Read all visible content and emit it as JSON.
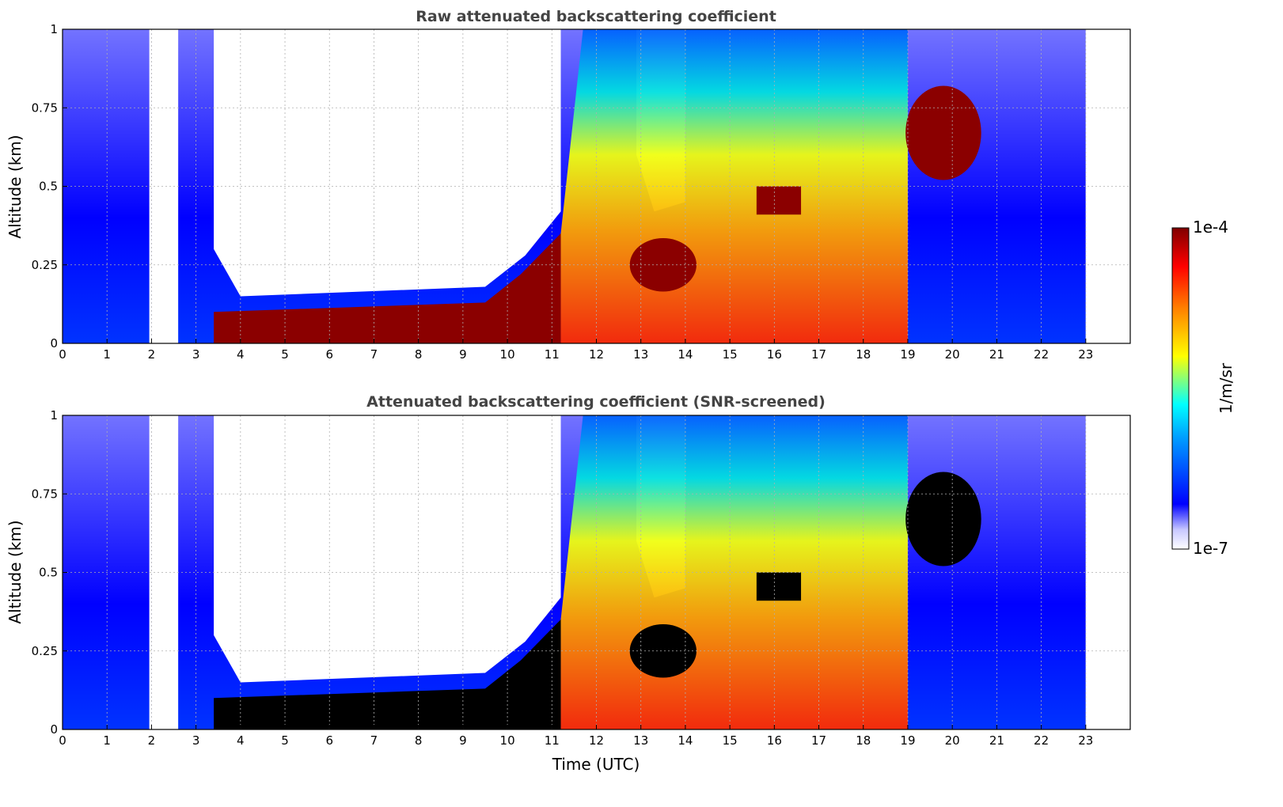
{
  "chart_data": [
    {
      "type": "heatmap",
      "title": "Raw attenuated backscattering coefficient",
      "xlabel": "",
      "ylabel": "Altitude (km)",
      "xlim": [
        0,
        24
      ],
      "ylim": [
        0,
        1
      ],
      "xticks": [
        "0",
        "1",
        "2",
        "3",
        "4",
        "5",
        "6",
        "7",
        "8",
        "9",
        "10",
        "11",
        "12",
        "13",
        "14",
        "15",
        "16",
        "17",
        "18",
        "19",
        "20",
        "21",
        "22",
        "23"
      ],
      "yticks": [
        "0",
        "0.25",
        "0.5",
        "0.75",
        "1"
      ],
      "grid": true,
      "data_gaps_utc": [
        [
          1.95,
          2.6
        ],
        [
          23.0,
          24.0
        ]
      ]
    },
    {
      "type": "heatmap",
      "title": "Attenuated backscattering coefficient (SNR-screened)",
      "xlabel": "Time (UTC)",
      "ylabel": "Altitude (km)",
      "xlim": [
        0,
        24
      ],
      "ylim": [
        0,
        1
      ],
      "xticks": [
        "0",
        "1",
        "2",
        "3",
        "4",
        "5",
        "6",
        "7",
        "8",
        "9",
        "10",
        "11",
        "12",
        "13",
        "14",
        "15",
        "16",
        "17",
        "18",
        "19",
        "20",
        "21",
        "22",
        "23"
      ],
      "yticks": [
        "0",
        "0.25",
        "0.5",
        "0.75",
        "1"
      ],
      "grid": true,
      "data_gaps_utc": [
        [
          1.95,
          2.6
        ],
        [
          23.0,
          24.0
        ]
      ]
    }
  ],
  "colorbar": {
    "label": "1/m/sr",
    "max_label": "1e-4",
    "min_label": "1e-7",
    "colormap": [
      "#ffffff",
      "#0000ff",
      "#00ffff",
      "#ffff00",
      "#ff0000",
      "#800000"
    ]
  }
}
